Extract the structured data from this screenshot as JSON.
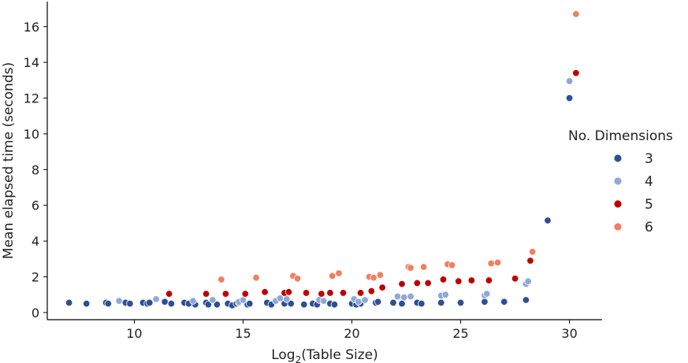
{
  "chart_data": {
    "type": "scatter",
    "xlabel_main": "Log",
    "xlabel_sub": "2",
    "xlabel_rest": "(Table Size)",
    "ylabel": "Mean elapsed time (seconds)",
    "xlim": [
      6,
      31.5
    ],
    "ylim": [
      -0.4,
      17.4
    ],
    "xticks": [
      10,
      15,
      20,
      25,
      30
    ],
    "yticks": [
      0,
      2,
      4,
      6,
      8,
      10,
      12,
      14,
      16
    ],
    "legend": {
      "title": "No. Dimensions",
      "placement": "right"
    },
    "grid": false,
    "series": [
      {
        "name": "3",
        "color": "#2c4f96",
        "points": [
          [
            7.0,
            0.55
          ],
          [
            7.8,
            0.5
          ],
          [
            8.7,
            0.55
          ],
          [
            8.8,
            0.5
          ],
          [
            9.6,
            0.55
          ],
          [
            9.8,
            0.5
          ],
          [
            10.4,
            0.55
          ],
          [
            10.6,
            0.5
          ],
          [
            10.7,
            0.55
          ],
          [
            11.4,
            0.6
          ],
          [
            11.7,
            0.5
          ],
          [
            12.3,
            0.55
          ],
          [
            12.5,
            0.5
          ],
          [
            12.8,
            0.45
          ],
          [
            13.3,
            0.55
          ],
          [
            13.4,
            0.45
          ],
          [
            13.8,
            0.45
          ],
          [
            14.3,
            0.5
          ],
          [
            14.5,
            0.4
          ],
          [
            14.7,
            0.5
          ],
          [
            14.8,
            0.55
          ],
          [
            15.2,
            0.45
          ],
          [
            15.3,
            0.5
          ],
          [
            16.1,
            0.55
          ],
          [
            16.3,
            0.45
          ],
          [
            16.9,
            0.5
          ],
          [
            17.2,
            0.5
          ],
          [
            17.8,
            0.45
          ],
          [
            18.2,
            0.5
          ],
          [
            18.4,
            0.45
          ],
          [
            19.0,
            0.5
          ],
          [
            19.2,
            0.45
          ],
          [
            20.0,
            0.5
          ],
          [
            20.2,
            0.45
          ],
          [
            20.4,
            0.5
          ],
          [
            21.1,
            0.55
          ],
          [
            21.2,
            0.6
          ],
          [
            21.9,
            0.55
          ],
          [
            22.3,
            0.5
          ],
          [
            23.0,
            0.55
          ],
          [
            23.2,
            0.5
          ],
          [
            24.1,
            0.55
          ],
          [
            25.0,
            0.55
          ],
          [
            26.1,
            0.6
          ],
          [
            27.0,
            0.6
          ],
          [
            28.0,
            0.7
          ],
          [
            29.0,
            5.15
          ],
          [
            30.0,
            12.0
          ]
        ]
      },
      {
        "name": "4",
        "color": "#8fa8d9",
        "points": [
          [
            9.3,
            0.65
          ],
          [
            11.0,
            0.75
          ],
          [
            12.7,
            0.65
          ],
          [
            13.6,
            0.7
          ],
          [
            14.8,
            0.6
          ],
          [
            15.0,
            0.7
          ],
          [
            16.5,
            0.65
          ],
          [
            16.7,
            0.8
          ],
          [
            17.0,
            0.75
          ],
          [
            18.5,
            0.7
          ],
          [
            18.7,
            0.65
          ],
          [
            20.1,
            0.75
          ],
          [
            20.3,
            0.6
          ],
          [
            20.6,
            0.7
          ],
          [
            22.1,
            0.9
          ],
          [
            22.4,
            0.85
          ],
          [
            22.7,
            0.9
          ],
          [
            24.1,
            0.95
          ],
          [
            24.3,
            1.0
          ],
          [
            26.1,
            0.95
          ],
          [
            26.2,
            1.05
          ],
          [
            28.0,
            1.6
          ],
          [
            28.1,
            1.75
          ],
          [
            30.0,
            12.95
          ]
        ]
      },
      {
        "name": "5",
        "color": "#c00000",
        "points": [
          [
            11.6,
            1.05
          ],
          [
            13.3,
            1.05
          ],
          [
            14.2,
            1.05
          ],
          [
            15.1,
            1.05
          ],
          [
            16.0,
            1.15
          ],
          [
            16.9,
            1.1
          ],
          [
            17.1,
            1.15
          ],
          [
            17.9,
            1.1
          ],
          [
            18.6,
            1.05
          ],
          [
            19.0,
            1.1
          ],
          [
            19.6,
            1.1
          ],
          [
            20.4,
            1.1
          ],
          [
            20.9,
            1.2
          ],
          [
            21.4,
            1.4
          ],
          [
            22.3,
            1.6
          ],
          [
            23.0,
            1.65
          ],
          [
            23.5,
            1.65
          ],
          [
            24.2,
            1.85
          ],
          [
            24.9,
            1.75
          ],
          [
            25.5,
            1.8
          ],
          [
            26.3,
            1.8
          ],
          [
            27.5,
            1.9
          ],
          [
            28.2,
            2.9
          ],
          [
            30.3,
            13.4
          ]
        ]
      },
      {
        "name": "6",
        "color": "#f08060",
        "points": [
          [
            14.0,
            1.85
          ],
          [
            15.6,
            1.95
          ],
          [
            17.3,
            2.05
          ],
          [
            17.5,
            1.9
          ],
          [
            19.1,
            2.05
          ],
          [
            19.4,
            2.2
          ],
          [
            20.8,
            2.0
          ],
          [
            21.0,
            1.95
          ],
          [
            21.3,
            2.1
          ],
          [
            22.6,
            2.55
          ],
          [
            22.7,
            2.5
          ],
          [
            23.3,
            2.55
          ],
          [
            24.4,
            2.7
          ],
          [
            24.6,
            2.65
          ],
          [
            26.4,
            2.75
          ],
          [
            26.7,
            2.8
          ],
          [
            28.3,
            3.4
          ],
          [
            30.3,
            16.7
          ]
        ]
      }
    ]
  }
}
